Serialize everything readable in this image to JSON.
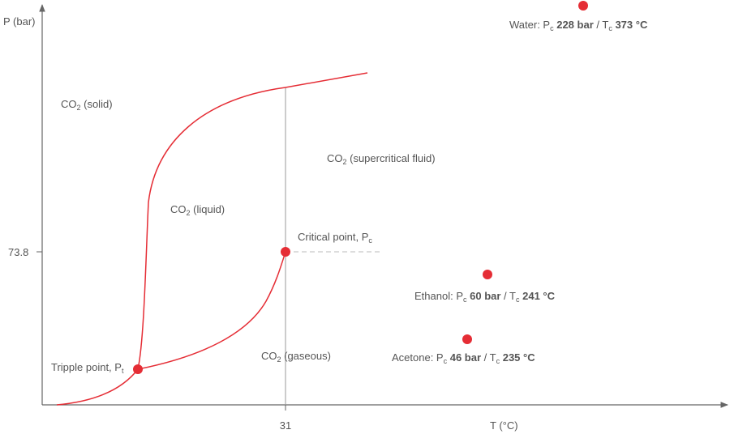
{
  "axes": {
    "y_label": "P (bar)",
    "x_label": "T (°C)",
    "y_tick": "73.8",
    "x_tick": "31"
  },
  "labels": [
    {
      "parts": [
        {
          "text": "CO"
        },
        {
          "text": "2",
          "sub": true
        },
        {
          "text": " (solid)"
        }
      ]
    },
    {
      "parts": [
        {
          "text": "CO"
        },
        {
          "text": "2",
          "sub": true
        },
        {
          "text": " (liquid)"
        }
      ]
    },
    {
      "parts": [
        {
          "text": "CO"
        },
        {
          "text": "2",
          "sub": true
        },
        {
          "text": " (supercritical fluid)"
        }
      ]
    },
    {
      "parts": [
        {
          "text": "CO"
        },
        {
          "text": "2",
          "sub": true
        },
        {
          "text": " (gaseous)"
        }
      ]
    },
    {
      "parts": [
        {
          "text": "Critical point, P"
        },
        {
          "text": "c",
          "sub": true
        }
      ]
    },
    {
      "parts": [
        {
          "text": "Tripple point, P"
        },
        {
          "text": "t",
          "sub": true
        }
      ]
    },
    {
      "parts": [
        {
          "text": "Water: P"
        },
        {
          "text": "c",
          "sub": true
        },
        {
          "text": " "
        },
        {
          "text": "228 bar",
          "bold": true
        },
        {
          "text": " / T"
        },
        {
          "text": "c",
          "sub": true
        },
        {
          "text": " "
        },
        {
          "text": "373 °C",
          "bold": true
        }
      ]
    },
    {
      "parts": [
        {
          "text": "Ethanol: P"
        },
        {
          "text": "c",
          "sub": true
        },
        {
          "text": " "
        },
        {
          "text": "60 bar",
          "bold": true
        },
        {
          "text": " / T"
        },
        {
          "text": "c",
          "sub": true
        },
        {
          "text": " "
        },
        {
          "text": "241 °C",
          "bold": true
        }
      ]
    },
    {
      "parts": [
        {
          "text": "Acetone: P"
        },
        {
          "text": "c",
          "sub": true
        },
        {
          "text": " "
        },
        {
          "text": "46 bar",
          "bold": true
        },
        {
          "text": " / T"
        },
        {
          "text": "c",
          "sub": true
        },
        {
          "text": " "
        },
        {
          "text": "235 °C",
          "bold": true
        }
      ]
    }
  ]
}
